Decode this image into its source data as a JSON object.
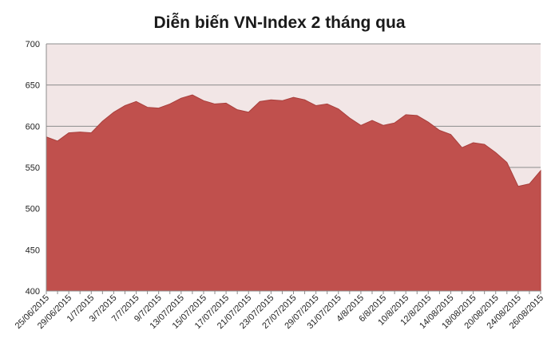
{
  "chart_data": {
    "type": "area",
    "title": "Diễn biến VN-Index 2 tháng qua",
    "xlabel": "",
    "ylabel": "",
    "ylim": [
      400,
      700
    ],
    "yticks": [
      400,
      450,
      500,
      550,
      600,
      650,
      700
    ],
    "grid": true,
    "legend": "none",
    "colors": {
      "area_fill": "#c0504d",
      "area_stroke": "#a83f3c",
      "plot_background": "#f2e6e6",
      "gridline": "#8c8c8c",
      "axis": "#8c8c8c"
    },
    "xtick_labels": [
      "25/06/2015",
      "29/06/2015",
      "1/7/2015",
      "3/7/2015",
      "7/7/2015",
      "9/7/2015",
      "13/07/2015",
      "15/07/2015",
      "17/07/2015",
      "21/07/2015",
      "23/07/2015",
      "27/07/2015",
      "29/07/2015",
      "31/07/2015",
      "4/8/2015",
      "6/8/2015",
      "10/8/2015",
      "12/8/2015",
      "14/08/2015",
      "18/08/2015",
      "20/08/2015",
      "24/08/2015",
      "26/08/2015"
    ],
    "series": [
      {
        "values": [
          587,
          582,
          592,
          593,
          592,
          606,
          617,
          625,
          630,
          623,
          622,
          627,
          634,
          638,
          631,
          627,
          628,
          620,
          617,
          630,
          632,
          631,
          635,
          632,
          625,
          627,
          621,
          610,
          601,
          607,
          601,
          604,
          614,
          613,
          605,
          595,
          590,
          574,
          580,
          578,
          568,
          556,
          527,
          530,
          546
        ]
      }
    ]
  }
}
